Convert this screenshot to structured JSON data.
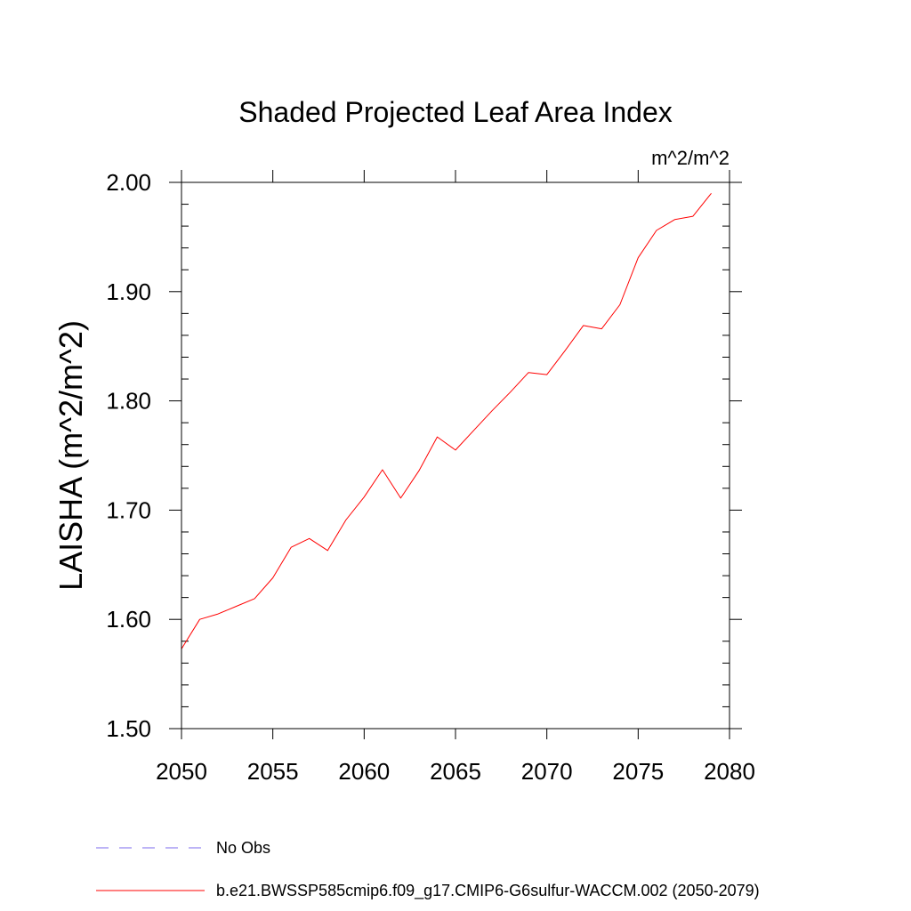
{
  "chart_data": {
    "type": "line",
    "title": "Shaded Projected Leaf Area Index",
    "units": "m^2/m^2",
    "ylabel": "LAISHA  (m^2/m^2)",
    "xlabel": "",
    "xlim": [
      2050,
      2080
    ],
    "ylim": [
      1.5,
      2.0
    ],
    "x_ticks": [
      2050,
      2055,
      2060,
      2065,
      2070,
      2075,
      2080
    ],
    "x_tick_labels": [
      "2050",
      "2055",
      "2060",
      "2065",
      "2070",
      "2075",
      "2080"
    ],
    "y_ticks": [
      1.5,
      1.6,
      1.7,
      1.8,
      1.9,
      2.0
    ],
    "y_tick_labels": [
      "1.50",
      "1.60",
      "1.70",
      "1.80",
      "1.90",
      "2.00"
    ],
    "grid": false,
    "legend_position": "bottom-left",
    "series": [
      {
        "name": "b.e21.BWSSP585cmip6.f09_g17.CMIP6-G6sulfur-WACCM.002 (2050-2079)",
        "color": "#ff0000",
        "style": "solid",
        "x": [
          2050,
          2051,
          2052,
          2053,
          2054,
          2055,
          2056,
          2057,
          2058,
          2059,
          2060,
          2061,
          2062,
          2063,
          2064,
          2065,
          2066,
          2067,
          2068,
          2069,
          2070,
          2071,
          2072,
          2073,
          2074,
          2075,
          2076,
          2077,
          2078,
          2079
        ],
        "y": [
          1.573,
          1.6,
          1.605,
          1.612,
          1.619,
          1.638,
          1.666,
          1.674,
          1.663,
          1.691,
          1.712,
          1.737,
          1.711,
          1.736,
          1.767,
          1.755,
          1.773,
          1.791,
          1.808,
          1.826,
          1.824,
          1.846,
          1.869,
          1.866,
          1.888,
          1.931,
          1.956,
          1.966,
          1.969,
          1.99
        ]
      }
    ],
    "legend": [
      {
        "label": "No Obs",
        "color": "#7b68ee",
        "style": "dashed"
      },
      {
        "label": "b.e21.BWSSP585cmip6.f09_g17.CMIP6-G6sulfur-WACCM.002 (2050-2079)",
        "color": "#ff0000",
        "style": "solid"
      }
    ]
  }
}
